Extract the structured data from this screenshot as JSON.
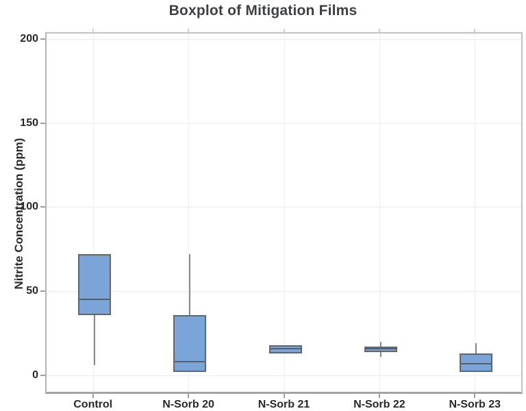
{
  "page": {
    "title": "Boxplot of Mitigation Films"
  },
  "chart_data": {
    "type": "boxplot",
    "title": "Boxplot of Mitigation Films",
    "xlabel": "",
    "ylabel": "Nitrite Concentration (ppm)",
    "categories": [
      "Control",
      "N-Sorb 20",
      "N-Sorb 21",
      "N-Sorb 22",
      "N-Sorb 23"
    ],
    "boxes": [
      {
        "category": "Control",
        "min": 6,
        "q1": 36,
        "median": 45,
        "q3": 72,
        "max": 72
      },
      {
        "category": "N-Sorb 20",
        "min": 2,
        "q1": 2,
        "median": 8,
        "q3": 36,
        "max": 72
      },
      {
        "category": "N-Sorb 21",
        "min": 13,
        "q1": 13,
        "median": 16,
        "q3": 18,
        "max": 18
      },
      {
        "category": "N-Sorb 22",
        "min": 11,
        "q1": 14,
        "median": 16,
        "q3": 17,
        "max": 20
      },
      {
        "category": "N-Sorb 23",
        "min": 2,
        "q1": 2,
        "median": 7,
        "q3": 13,
        "max": 19
      }
    ],
    "yticks": [
      0,
      50,
      100,
      150,
      200
    ],
    "ylim": [
      -11,
      204
    ],
    "grid": true,
    "legend": "none",
    "colors": {
      "box_fill": "#7ba4d9",
      "box_border": "#5f6670",
      "median_line": "#566069",
      "whisker": "#8a8a8a",
      "gridline": "#ebebeb",
      "frame": "#b5b5b5",
      "title_text": "#3d4045",
      "axis_text": "#27292c"
    }
  }
}
